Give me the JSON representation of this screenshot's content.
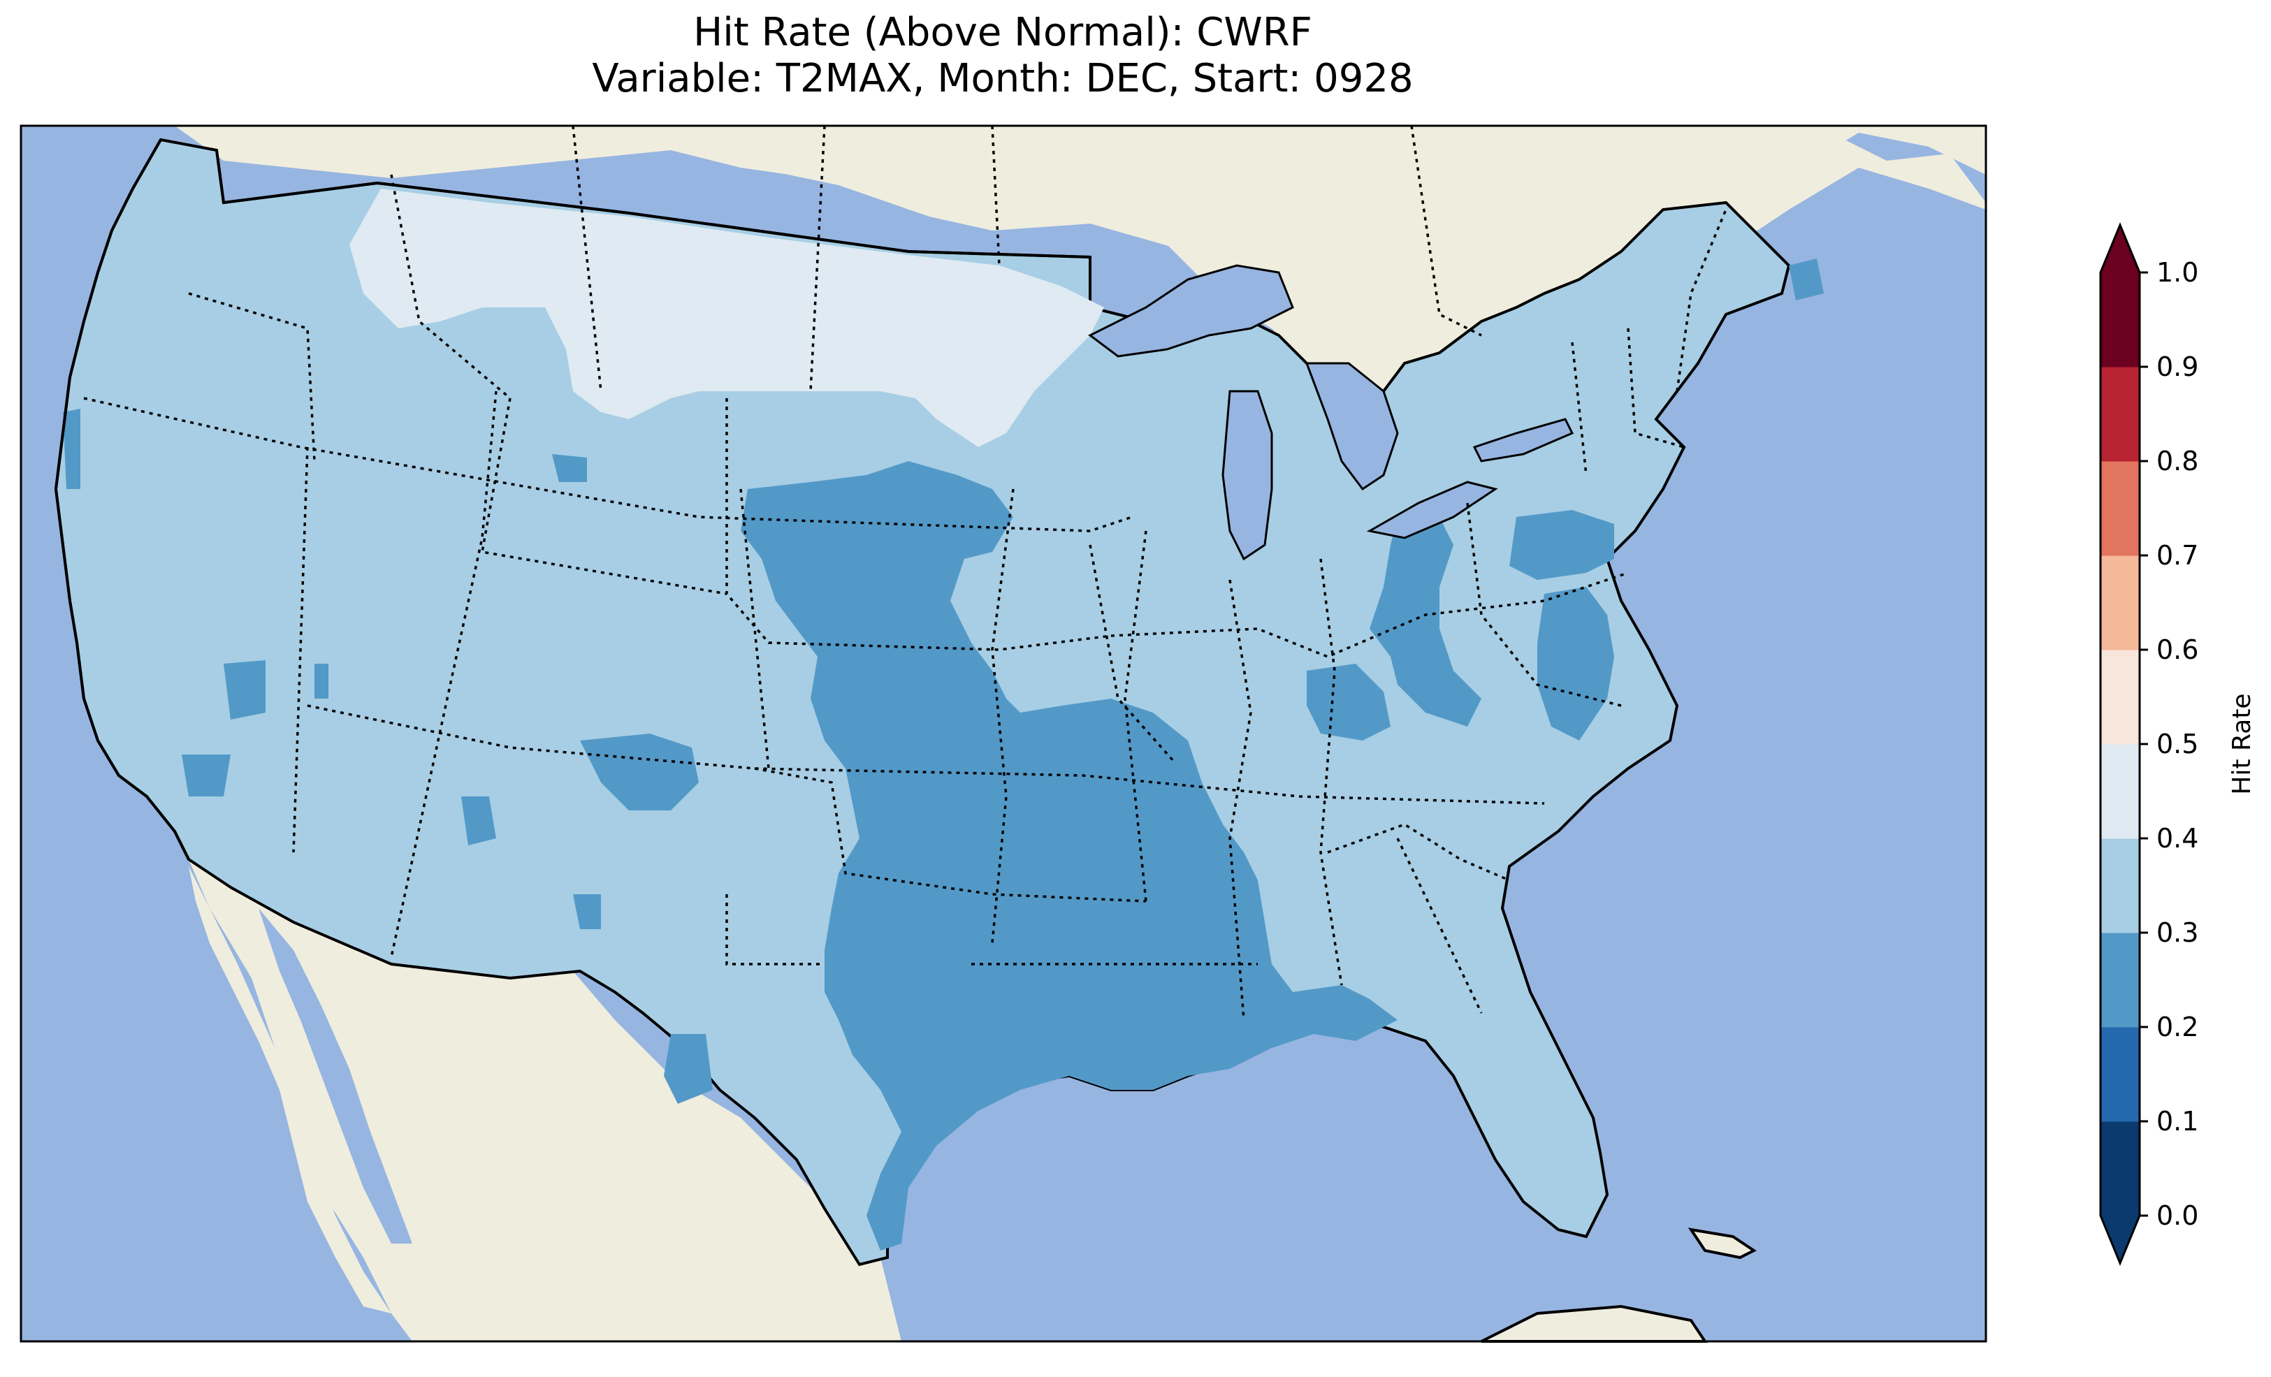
{
  "figure": {
    "title_line1": "Hit Rate (Above Normal): CWRF",
    "title_line2": "Variable: T2MAX, Month: DEC, Start: 0928"
  },
  "map": {
    "ocean_color": "#97b5e1",
    "land_color": "#efedde",
    "region": "Contiguous United States",
    "field": "Hit Rate",
    "dominant_class": "0.3–0.4",
    "features": [
      "state-borders",
      "country-borders",
      "coastlines",
      "great-lakes"
    ]
  },
  "colorbar": {
    "label": "Hit Rate",
    "ticks": [
      "0.0",
      "0.1",
      "0.2",
      "0.3",
      "0.4",
      "0.5",
      "0.6",
      "0.7",
      "0.8",
      "0.9",
      "1.0"
    ],
    "extend": "both",
    "colors": [
      "#053061",
      "#2166ac",
      "#4393c3",
      "#92c5de",
      "#d1e5f0",
      "#f7f7f7",
      "#fddbc7",
      "#f4a582",
      "#d6604d",
      "#b2182b",
      "#67001f"
    ],
    "bin_colors": [
      "#0b3a6e",
      "#2468ad",
      "#5399c8",
      "#a7cee4",
      "#dfeaf2",
      "#f8e5dc",
      "#f5b899",
      "#e2755f",
      "#b82331",
      "#6b0020"
    ]
  }
}
